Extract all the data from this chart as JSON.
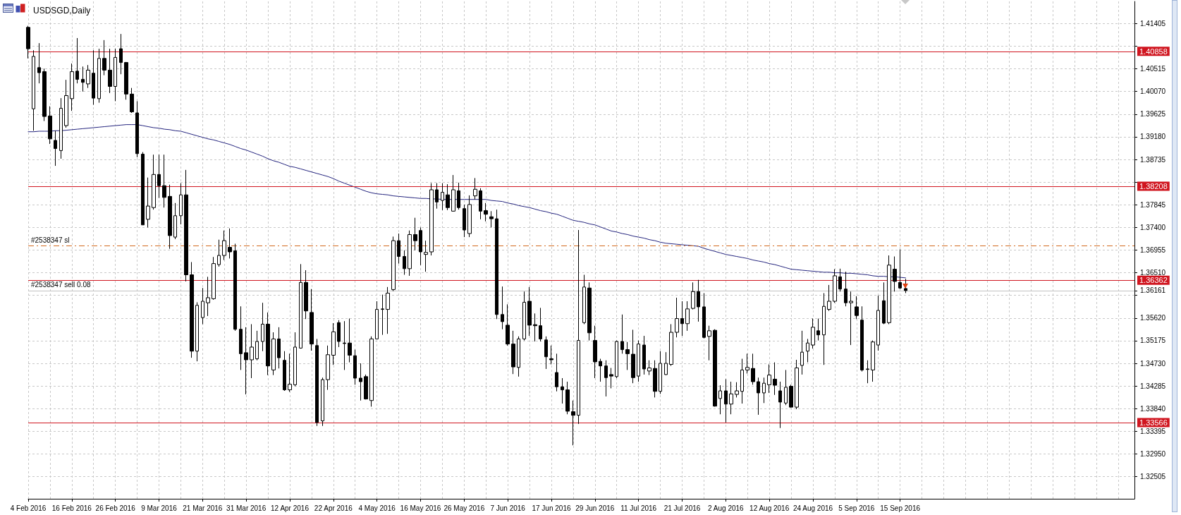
{
  "chart_data": {
    "type": "candlestick",
    "title": "USDSGD,Daily",
    "categories": [
      "4 Feb 2016",
      null,
      null,
      null,
      null,
      null,
      null,
      null,
      "16 Feb 2016",
      null,
      null,
      null,
      null,
      null,
      null,
      null,
      "26 Feb 2016",
      null,
      null,
      null,
      null,
      null,
      null,
      null,
      "9 Mar 2016",
      null,
      null,
      null,
      null,
      null,
      null,
      null,
      "21 Mar 2016",
      null,
      null,
      null,
      null,
      null,
      null,
      null,
      "31 Mar 2016",
      null,
      null,
      null,
      null,
      null,
      null,
      null,
      "12 Apr 2016",
      null,
      null,
      null,
      null,
      null,
      null,
      null,
      "22 Apr 2016",
      null,
      null,
      null,
      null,
      null,
      null,
      null,
      "4 May 2016",
      null,
      null,
      null,
      null,
      null,
      null,
      null,
      "16 May 2016",
      null,
      null,
      null,
      null,
      null,
      null,
      null,
      "26 May 2016",
      null,
      null,
      null,
      null,
      null,
      null,
      null,
      "7 Jun 2016",
      null,
      null,
      null,
      null,
      null,
      null,
      null,
      "17 Jun 2016",
      null,
      null,
      null,
      null,
      null,
      null,
      null,
      "29 Jun 2016",
      null,
      null,
      null,
      null,
      null,
      null,
      null,
      "11 Jul 2016",
      null,
      null,
      null,
      null,
      null,
      null,
      null,
      "21 Jul 2016",
      null,
      null,
      null,
      null,
      null,
      null,
      null,
      "2 Aug 2016",
      null,
      null,
      null,
      null,
      null,
      null,
      null,
      "12 Aug 2016",
      null,
      null,
      null,
      null,
      null,
      null,
      null,
      "24 Aug 2016",
      null,
      null,
      null,
      null,
      null,
      null,
      null,
      "5 Sep 2016",
      null,
      null,
      null,
      null,
      null,
      null,
      null,
      "15 Sep 2016",
      null,
      null,
      null,
      null,
      null,
      null,
      null,
      null,
      null,
      null,
      null,
      null,
      null,
      null,
      null,
      null,
      null,
      null,
      null,
      null,
      null,
      null,
      null,
      null,
      null,
      null,
      null,
      null,
      null,
      null,
      null,
      null,
      null,
      null,
      null,
      null,
      null,
      null,
      null,
      null,
      null,
      null,
      null
    ],
    "ohlc": [
      [
        1.4133,
        1.4136,
        1.4072,
        1.4091
      ],
      [
        1.3973,
        1.4088,
        1.393,
        1.4076
      ],
      [
        1.4054,
        1.4102,
        1.4023,
        1.4044
      ],
      [
        1.4046,
        1.4052,
        1.3949,
        1.3958
      ],
      [
        1.3959,
        1.3978,
        1.3904,
        1.3914
      ],
      [
        1.3911,
        1.393,
        1.3861,
        1.3895
      ],
      [
        1.3891,
        1.3994,
        1.3875,
        1.3974
      ],
      [
        1.394,
        1.403,
        1.3936,
        1.3999
      ],
      [
        1.3993,
        1.4062,
        1.3969,
        1.4046
      ],
      [
        1.4047,
        1.4112,
        1.4023,
        1.4031
      ],
      [
        1.4031,
        1.4056,
        1.4007,
        1.4025
      ],
      [
        1.4022,
        1.4059,
        1.4014,
        1.4049
      ],
      [
        1.4043,
        1.4088,
        1.3981,
        1.3994
      ],
      [
        1.3993,
        1.4091,
        1.3985,
        1.4072
      ],
      [
        1.4072,
        1.4108,
        1.4039,
        1.4049
      ],
      [
        1.4049,
        1.4091,
        1.4004,
        1.4017
      ],
      [
        1.4017,
        1.4091,
        1.3988,
        1.4074
      ],
      [
        1.4091,
        1.412,
        1.4041,
        1.4064
      ],
      [
        1.4064,
        1.4065,
        1.3991,
        1.4002
      ],
      [
        1.4002,
        1.4014,
        1.3965,
        1.3967
      ],
      [
        1.3965,
        1.3988,
        1.3878,
        1.3885
      ],
      [
        1.3884,
        1.3888,
        1.3745,
        1.3745
      ],
      [
        1.3756,
        1.3838,
        1.374,
        1.3782
      ],
      [
        1.3779,
        1.3883,
        1.3775,
        1.3844
      ],
      [
        1.3844,
        1.3883,
        1.3798,
        1.3822
      ],
      [
        1.3822,
        1.3883,
        1.3779,
        1.3799
      ],
      [
        1.3801,
        1.3824,
        1.3698,
        1.3724
      ],
      [
        1.3721,
        1.3788,
        1.3717,
        1.3763
      ],
      [
        1.3763,
        1.3827,
        1.3746,
        1.3804
      ],
      [
        1.3804,
        1.3853,
        1.3634,
        1.3647
      ],
      [
        1.3647,
        1.3672,
        1.3484,
        1.3497
      ],
      [
        1.3497,
        1.3593,
        1.3477,
        1.3587
      ],
      [
        1.3563,
        1.3621,
        1.355,
        1.3595
      ],
      [
        1.3592,
        1.3643,
        1.3566,
        1.3602
      ],
      [
        1.36,
        1.3682,
        1.3598,
        1.3669
      ],
      [
        1.3667,
        1.3716,
        1.3663,
        1.3685
      ],
      [
        1.3685,
        1.3734,
        1.3676,
        1.3714
      ],
      [
        1.3701,
        1.3738,
        1.3679,
        1.3692
      ],
      [
        1.3694,
        1.3708,
        1.3537,
        1.354
      ],
      [
        1.354,
        1.3585,
        1.346,
        1.3492
      ],
      [
        1.3494,
        1.3544,
        1.3412,
        1.348
      ],
      [
        1.348,
        1.355,
        1.3444,
        1.3505
      ],
      [
        1.3482,
        1.3537,
        1.3479,
        1.3516
      ],
      [
        1.3516,
        1.3592,
        1.3497,
        1.355
      ],
      [
        1.355,
        1.3573,
        1.345,
        1.3468
      ],
      [
        1.346,
        1.3534,
        1.345,
        1.3521
      ],
      [
        1.3521,
        1.3544,
        1.3463,
        1.3484
      ],
      [
        1.3479,
        1.3497,
        1.3419,
        1.3421
      ],
      [
        1.3421,
        1.3492,
        1.3417,
        1.3432
      ],
      [
        1.3431,
        1.3534,
        1.3428,
        1.3505
      ],
      [
        1.3503,
        1.3668,
        1.3502,
        1.3632
      ],
      [
        1.3632,
        1.3656,
        1.356,
        1.3576
      ],
      [
        1.3573,
        1.3619,
        1.3498,
        1.3511
      ],
      [
        1.3508,
        1.3521,
        1.335,
        1.3357
      ],
      [
        1.336,
        1.3445,
        1.335,
        1.3441
      ],
      [
        1.3441,
        1.3508,
        1.3421,
        1.349
      ],
      [
        1.3489,
        1.3552,
        1.347,
        1.3535
      ],
      [
        1.3553,
        1.3558,
        1.3505,
        1.3516
      ],
      [
        1.3513,
        1.3556,
        1.346,
        1.3512
      ],
      [
        1.3513,
        1.3561,
        1.3475,
        1.3489
      ],
      [
        1.3488,
        1.35,
        1.3431,
        1.3444
      ],
      [
        1.3444,
        1.3473,
        1.34,
        1.3437
      ],
      [
        1.3447,
        1.3451,
        1.3402,
        1.3403
      ],
      [
        1.34,
        1.3526,
        1.3388,
        1.3521
      ],
      [
        1.3521,
        1.3595,
        1.352,
        1.3579
      ],
      [
        1.3579,
        1.3608,
        1.3529,
        1.358
      ],
      [
        1.3579,
        1.3623,
        1.3531,
        1.3611
      ],
      [
        1.3618,
        1.3722,
        1.3615,
        1.3714
      ],
      [
        1.3714,
        1.3728,
        1.3669,
        1.3683
      ],
      [
        1.3683,
        1.3695,
        1.3647,
        1.3659
      ],
      [
        1.3659,
        1.3734,
        1.3645,
        1.3726
      ],
      [
        1.3726,
        1.3759,
        1.3695,
        1.3714
      ],
      [
        1.3734,
        1.374,
        1.3666,
        1.3692
      ],
      [
        1.3687,
        1.3714,
        1.3653,
        1.3691
      ],
      [
        1.3692,
        1.3827,
        1.3685,
        1.3814
      ],
      [
        1.3814,
        1.3827,
        1.3777,
        1.379
      ],
      [
        1.3793,
        1.3827,
        1.3774,
        1.3809
      ],
      [
        1.3804,
        1.3825,
        1.3774,
        1.3779
      ],
      [
        1.3772,
        1.3843,
        1.3771,
        1.3814
      ],
      [
        1.3812,
        1.3828,
        1.3775,
        1.3779
      ],
      [
        1.3777,
        1.3785,
        1.3721,
        1.3735
      ],
      [
        1.3728,
        1.3803,
        1.3721,
        1.3785
      ],
      [
        1.3802,
        1.3837,
        1.3795,
        1.3815
      ],
      [
        1.3812,
        1.3817,
        1.3756,
        1.3772
      ],
      [
        1.3773,
        1.3788,
        1.3752,
        1.3766
      ],
      [
        1.3761,
        1.3772,
        1.374,
        1.3757
      ],
      [
        1.3757,
        1.3775,
        1.356,
        1.3569
      ],
      [
        1.3569,
        1.3624,
        1.354,
        1.3555
      ],
      [
        1.3548,
        1.3589,
        1.3508,
        1.3511
      ],
      [
        1.3511,
        1.3537,
        1.3452,
        1.3466
      ],
      [
        1.3465,
        1.3526,
        1.3447,
        1.3521
      ],
      [
        1.3521,
        1.3614,
        1.3518,
        1.3593
      ],
      [
        1.3595,
        1.3623,
        1.3527,
        1.3548
      ],
      [
        1.3549,
        1.3571,
        1.3516,
        1.3547
      ],
      [
        1.3547,
        1.3582,
        1.3516,
        1.3521
      ],
      [
        1.3519,
        1.3526,
        1.3462,
        1.3486
      ],
      [
        1.3482,
        1.3508,
        1.3471,
        1.348
      ],
      [
        1.3455,
        1.3492,
        1.3418,
        1.3427
      ],
      [
        1.3427,
        1.3444,
        1.3394,
        1.3421
      ],
      [
        1.3421,
        1.3437,
        1.3373,
        1.3379
      ],
      [
        1.3378,
        1.34,
        1.3312,
        1.3371
      ],
      [
        1.3371,
        1.3735,
        1.3354,
        1.3518
      ],
      [
        1.3553,
        1.3647,
        1.355,
        1.3623
      ],
      [
        1.3621,
        1.3632,
        1.3518,
        1.3533
      ],
      [
        1.3518,
        1.3547,
        1.3444,
        1.3476
      ],
      [
        1.3477,
        1.3482,
        1.3437,
        1.3468
      ],
      [
        1.3468,
        1.3479,
        1.3408,
        1.3445
      ],
      [
        1.3451,
        1.3464,
        1.3424,
        1.3448
      ],
      [
        1.3447,
        1.3518,
        1.3444,
        1.3516
      ],
      [
        1.3516,
        1.3569,
        1.3492,
        1.35
      ],
      [
        1.35,
        1.3515,
        1.346,
        1.3492
      ],
      [
        1.3491,
        1.3539,
        1.3434,
        1.3445
      ],
      [
        1.3448,
        1.3518,
        1.3437,
        1.3511
      ],
      [
        1.3509,
        1.3527,
        1.3451,
        1.3462
      ],
      [
        1.3458,
        1.3479,
        1.345,
        1.3464
      ],
      [
        1.3463,
        1.3479,
        1.3406,
        1.3418
      ],
      [
        1.3418,
        1.3497,
        1.3413,
        1.3473
      ],
      [
        1.3451,
        1.3495,
        1.345,
        1.3473
      ],
      [
        1.3471,
        1.355,
        1.3468,
        1.3534
      ],
      [
        1.3534,
        1.3602,
        1.3524,
        1.3561
      ],
      [
        1.3561,
        1.3595,
        1.3527,
        1.3551
      ],
      [
        1.3551,
        1.3595,
        1.3537,
        1.358
      ],
      [
        1.3581,
        1.3632,
        1.3579,
        1.3614
      ],
      [
        1.3614,
        1.3637,
        1.3555,
        1.3584
      ],
      [
        1.3584,
        1.3611,
        1.3522,
        1.3524
      ],
      [
        1.3526,
        1.3547,
        1.3479,
        1.3537
      ],
      [
        1.3538,
        1.354,
        1.3388,
        1.3389
      ],
      [
        1.3404,
        1.343,
        1.3373,
        1.3419
      ],
      [
        1.3419,
        1.3442,
        1.3357,
        1.3393
      ],
      [
        1.3393,
        1.3437,
        1.3373,
        1.3413
      ],
      [
        1.3412,
        1.3436,
        1.3406,
        1.3419
      ],
      [
        1.3418,
        1.3482,
        1.3394,
        1.346
      ],
      [
        1.346,
        1.3492,
        1.3453,
        1.3465
      ],
      [
        1.3463,
        1.3492,
        1.3431,
        1.3437
      ],
      [
        1.3437,
        1.3445,
        1.3372,
        1.3415
      ],
      [
        1.3415,
        1.3445,
        1.3395,
        1.3434
      ],
      [
        1.3431,
        1.3471,
        1.3415,
        1.345
      ],
      [
        1.3442,
        1.3475,
        1.3411,
        1.343
      ],
      [
        1.3419,
        1.3437,
        1.3346,
        1.3397
      ],
      [
        1.3395,
        1.346,
        1.3391,
        1.3426
      ],
      [
        1.3428,
        1.3431,
        1.3386,
        1.3387
      ],
      [
        1.3387,
        1.348,
        1.3383,
        1.3464
      ],
      [
        1.3469,
        1.3537,
        1.3451,
        1.3495
      ],
      [
        1.3497,
        1.3521,
        1.3475,
        1.3513
      ],
      [
        1.3509,
        1.3561,
        1.3502,
        1.3544
      ],
      [
        1.3537,
        1.3561,
        1.3518,
        1.3529
      ],
      [
        1.3529,
        1.3611,
        1.347,
        1.3585
      ],
      [
        1.3579,
        1.3627,
        1.3576,
        1.3595
      ],
      [
        1.3595,
        1.3658,
        1.3592,
        1.3645
      ],
      [
        1.3643,
        1.3659,
        1.3614,
        1.3619
      ],
      [
        1.3619,
        1.3653,
        1.3585,
        1.3592
      ],
      [
        1.3592,
        1.3614,
        1.3509,
        1.3595
      ],
      [
        1.3584,
        1.3605,
        1.356,
        1.3567
      ],
      [
        1.3558,
        1.3585,
        1.3457,
        1.346
      ],
      [
        1.3461,
        1.3479,
        1.3434,
        1.3462
      ],
      [
        1.346,
        1.3518,
        1.3437,
        1.3515
      ],
      [
        1.3509,
        1.3606,
        1.3498,
        1.3577
      ],
      [
        1.3596,
        1.3632,
        1.355,
        1.3552
      ],
      [
        1.3553,
        1.3685,
        1.355,
        1.3666
      ],
      [
        1.3658,
        1.3683,
        1.3614,
        1.3634
      ],
      [
        1.3632,
        1.3697,
        1.3619,
        1.3621
      ],
      [
        1.362,
        1.3639,
        1.3611,
        1.3616
      ],
      null,
      null,
      null,
      null,
      null,
      null,
      null,
      null,
      null,
      null,
      null,
      null,
      null,
      null,
      null,
      null,
      null,
      null,
      null,
      null,
      null,
      null,
      null,
      null,
      null,
      null,
      null,
      null,
      null,
      null,
      null,
      null,
      null,
      null,
      null,
      null,
      null,
      null,
      null,
      null,
      null,
      null
    ],
    "series": [
      {
        "type": "line",
        "color": "#24247e",
        "values": [
          1.3928,
          1.3928,
          1.3929,
          1.3929,
          1.3929,
          1.393,
          1.393,
          1.3931,
          1.3932,
          1.3933,
          1.3934,
          1.3935,
          1.3936,
          1.3937,
          1.3938,
          1.3939,
          1.394,
          1.3941,
          1.3942,
          1.3942,
          1.3942,
          1.394,
          1.3938,
          1.3936,
          1.3935,
          1.3933,
          1.3932,
          1.393,
          1.3929,
          1.3926,
          1.3923,
          1.392,
          1.3917,
          1.3914,
          1.3912,
          1.3909,
          1.3906,
          1.3903,
          1.3899,
          1.3895,
          1.3892,
          1.3888,
          1.3884,
          1.388,
          1.3875,
          1.3871,
          1.3868,
          1.3864,
          1.386,
          1.3858,
          1.3855,
          1.3852,
          1.3849,
          1.3846,
          1.3843,
          1.384,
          1.3836,
          1.3831,
          1.3827,
          1.3823,
          1.3819,
          1.3815,
          1.3811,
          1.3808,
          1.3806,
          1.3805,
          1.3804,
          1.3802,
          1.3801,
          1.38,
          1.3799,
          1.3798,
          1.3797,
          1.3797,
          1.3796,
          1.3796,
          1.3795,
          1.3795,
          1.3795,
          1.3795,
          1.3795,
          1.3795,
          1.3795,
          1.3795,
          1.3795,
          1.3793,
          1.3792,
          1.3791,
          1.3788,
          1.3786,
          1.3783,
          1.3781,
          1.3779,
          1.3776,
          1.3773,
          1.3771,
          1.3768,
          1.3766,
          1.3762,
          1.3758,
          1.3754,
          1.3752,
          1.375,
          1.3747,
          1.3745,
          1.3741,
          1.3737,
          1.3733,
          1.3731,
          1.3728,
          1.3726,
          1.3723,
          1.3721,
          1.3719,
          1.3716,
          1.3714,
          1.3711,
          1.3709,
          1.3708,
          1.3707,
          1.3706,
          1.3705,
          1.3704,
          1.3703,
          1.3699,
          1.3696,
          1.3693,
          1.369,
          1.3687,
          1.3685,
          1.3683,
          1.3681,
          1.3679,
          1.3676,
          1.3674,
          1.3672,
          1.3669,
          1.3667,
          1.3664,
          1.3661,
          1.3658,
          1.3657,
          1.3656,
          1.3655,
          1.3654,
          1.3653,
          1.3652,
          1.3652,
          1.3651,
          1.3651,
          1.365,
          1.365,
          1.3649,
          1.3648,
          1.3647,
          1.3645,
          1.3644,
          1.3644,
          1.3643,
          1.3643,
          1.3642,
          1.3641,
          null,
          null,
          null,
          null,
          null,
          null,
          null,
          null,
          null,
          null,
          null,
          null,
          null,
          null,
          null,
          null,
          null,
          null,
          null,
          null,
          null,
          null,
          null,
          null,
          null,
          null,
          null,
          null,
          null,
          null,
          null,
          null,
          null,
          null,
          null,
          null,
          null,
          null,
          null,
          null,
          null,
          null
        ]
      }
    ],
    "ylim": [
      1.3207,
      1.4184
    ],
    "yticks": [
      1.32505,
      {
        "value": 1.3295,
        "label": "1.32950"
      },
      1.33395,
      {
        "value": 1.3384,
        "label": "1.33840"
      },
      1.34285,
      {
        "value": 1.3473,
        "label": "1.34730"
      },
      1.35175,
      {
        "value": 1.3562,
        "label": "1.35620"
      },
      {
        "value": 1.36065,
        "label": null
      },
      {
        "value": 1.36161,
        "label": "1.36161"
      },
      {
        "value": 1.3651,
        "label": "1.36510"
      },
      1.36955,
      {
        "value": 1.374,
        "label": "1.37400"
      },
      1.37845,
      {
        "value": 1.3829,
        "label": null
      },
      1.38735,
      {
        "value": 1.3918,
        "label": "1.39180"
      },
      1.39625,
      {
        "value": 1.4007,
        "label": "1.40070"
      },
      1.40515,
      {
        "value": 1.4096,
        "label": null
      },
      1.41405
    ],
    "ref_lines": [
      {
        "axis": "y",
        "value": 1.40858,
        "label": "1.40858",
        "color": "#d0151f",
        "line_style": "solid"
      },
      {
        "axis": "y",
        "value": 1.38208,
        "label": "1.38208",
        "color": "#d0151f",
        "line_style": "solid"
      },
      {
        "axis": "y",
        "value": 1.36362,
        "label": "1.36362",
        "color": "#d0151f",
        "line_style": "solid"
      },
      {
        "axis": "y",
        "value": 1.33566,
        "label": "1.33566",
        "color": "#d0151f",
        "line_style": "solid"
      },
      {
        "axis": "y",
        "value": 1.3704,
        "label": "#2538347 sl",
        "color": "#d2691e",
        "line_style": "dashed"
      },
      {
        "axis": "y",
        "value": 1.36161,
        "label": "#2538347 sell 0.08",
        "color": "#c0c0c0",
        "line_style": "solid"
      }
    ],
    "grid": true,
    "marker": "none"
  }
}
